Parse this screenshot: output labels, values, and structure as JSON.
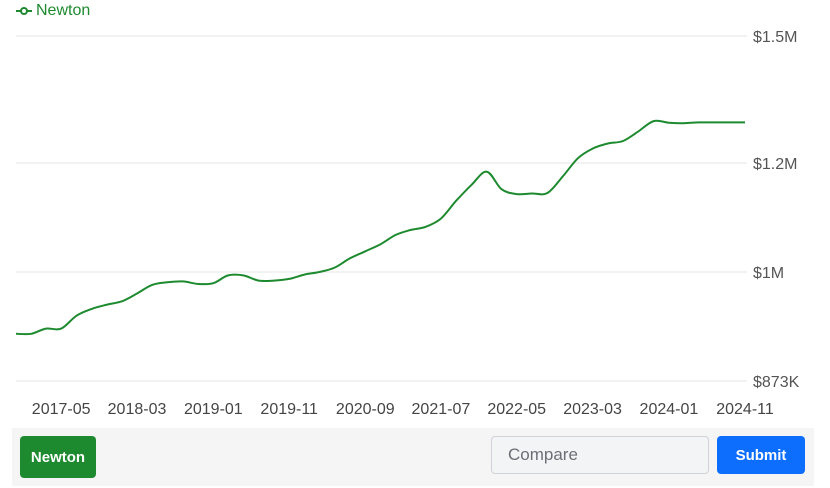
{
  "chart_data": {
    "type": "line",
    "series": [
      {
        "name": "Newton",
        "color": "#1e8a2f",
        "x": [
          "2016-11",
          "2017-01",
          "2017-03",
          "2017-05",
          "2017-07",
          "2017-09",
          "2017-11",
          "2018-01",
          "2018-03",
          "2018-05",
          "2018-07",
          "2018-09",
          "2018-11",
          "2019-01",
          "2019-03",
          "2019-05",
          "2019-07",
          "2019-09",
          "2019-11",
          "2020-01",
          "2020-03",
          "2020-05",
          "2020-07",
          "2020-09",
          "2020-11",
          "2021-01",
          "2021-03",
          "2021-05",
          "2021-07",
          "2021-09",
          "2021-11",
          "2022-01",
          "2022-03",
          "2022-05",
          "2022-07",
          "2022-09",
          "2022-11",
          "2023-01",
          "2023-03",
          "2023-05",
          "2023-07",
          "2023-09",
          "2023-11",
          "2024-01",
          "2024-03",
          "2024-05",
          "2024-07",
          "2024-09",
          "2024-11"
        ],
        "values": [
          928,
          928,
          934,
          934,
          949,
          957,
          962,
          966,
          975,
          985,
          988,
          989,
          986,
          987,
          996,
          996,
          990,
          990,
          992,
          997,
          1000,
          1008,
          1025,
          1038,
          1051,
          1068,
          1077,
          1083,
          1098,
          1131,
          1160,
          1184,
          1152,
          1143,
          1144,
          1145,
          1175,
          1211,
          1234,
          1246,
          1252,
          1275,
          1299,
          1295,
          1294,
          1296,
          1296,
          1296,
          1296
        ]
      }
    ],
    "legend": {
      "label": "Newton",
      "position": "top-left"
    },
    "y_ticks": [
      {
        "value": 873,
        "label": "$873K"
      },
      {
        "value": 1000,
        "label": "$1M"
      },
      {
        "value": 1200,
        "label": "$1.2M"
      },
      {
        "value": 1500,
        "label": "$1.5M"
      }
    ],
    "x_ticks": [
      "2017-05",
      "2018-03",
      "2019-01",
      "2019-11",
      "2020-09",
      "2021-07",
      "2022-05",
      "2023-03",
      "2024-01",
      "2024-11"
    ],
    "y_unit": "thousands of dollars",
    "grid": true
  },
  "controls": {
    "city_button_label": "Newton",
    "compare_placeholder": "Compare",
    "submit_label": "Submit",
    "city_color": "#1e8a2f",
    "submit_color": "#0d6efd"
  }
}
